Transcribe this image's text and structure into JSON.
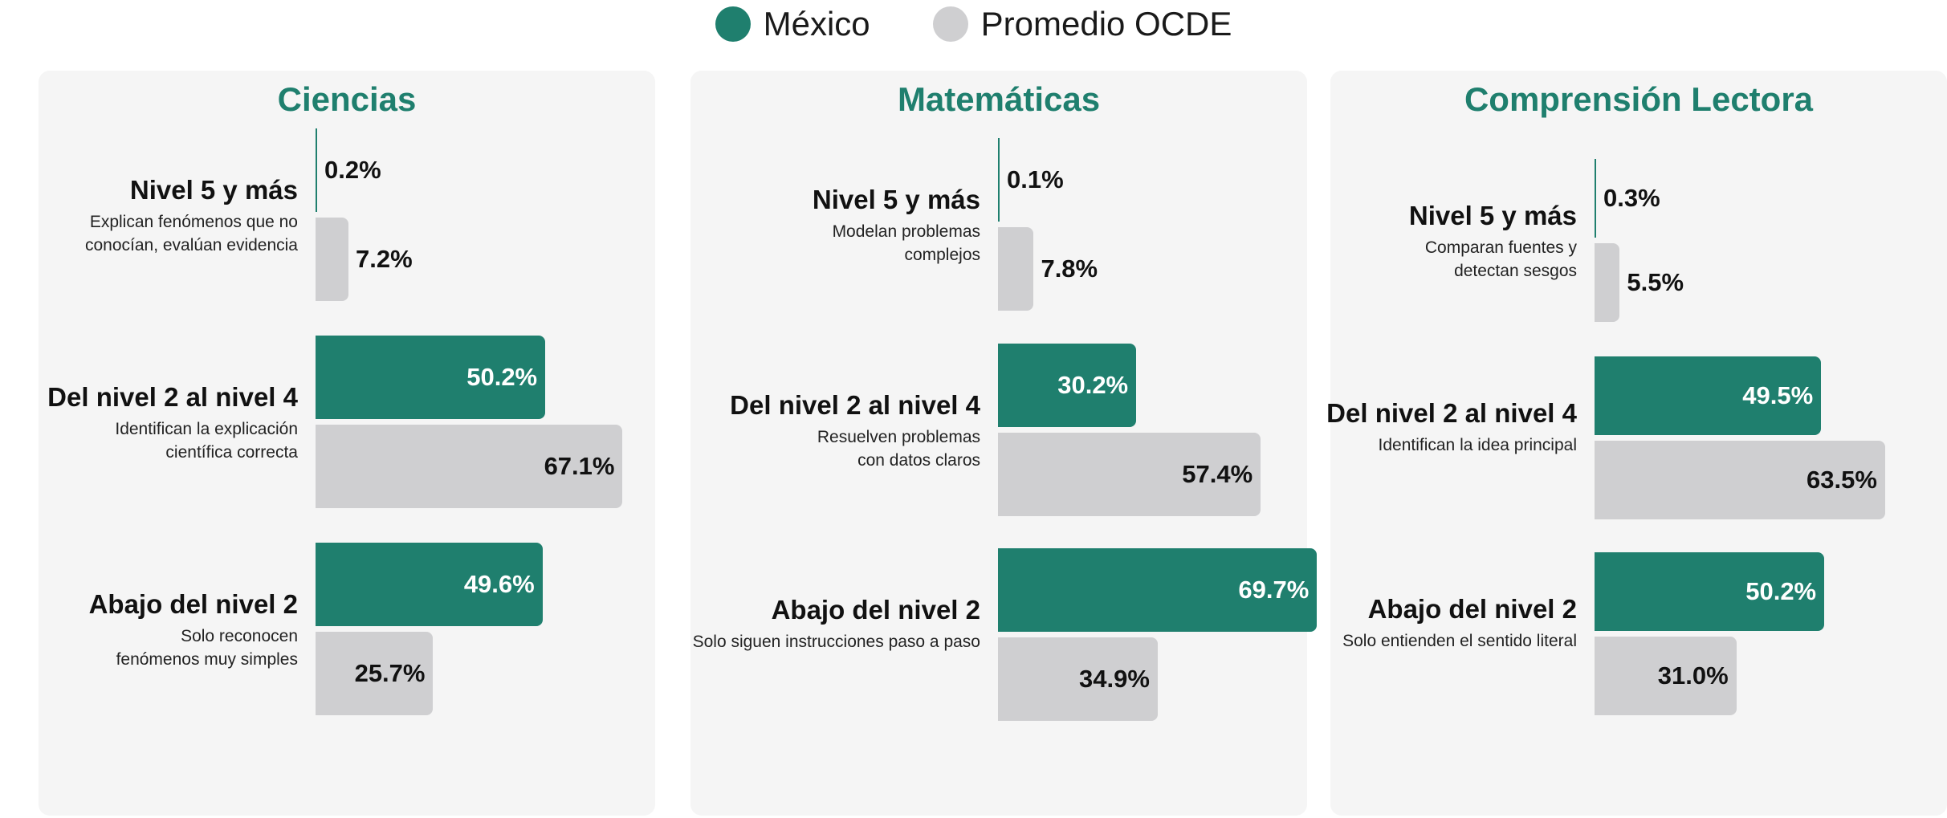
{
  "colors": {
    "mexico": "#1f7f6e",
    "ocde": "#cfcfd1",
    "title": "#1f7f6e",
    "panel_bg": "#f5f5f5"
  },
  "legend": [
    {
      "label": "México",
      "color": "#1f7f6e"
    },
    {
      "label": "Promedio OCDE",
      "color": "#cfcfd1"
    }
  ],
  "chart_data": [
    {
      "type": "bar",
      "title": "Ciencias",
      "categories": [
        {
          "name": "Nivel 5 y más",
          "desc": "Explican fenómenos que no\nconocían, evalúan evidencia",
          "values": [
            0.2,
            7.2
          ]
        },
        {
          "name": "Del nivel 2 al nivel 4",
          "desc": "Identifican la explicación\ncientífica correcta",
          "values": [
            50.2,
            67.1
          ]
        },
        {
          "name": "Abajo del nivel 2",
          "desc": "Solo reconocen\nfenómenos muy simples",
          "values": [
            49.6,
            25.7
          ]
        }
      ],
      "series": [
        {
          "name": "México"
        },
        {
          "name": "Promedio OCDE"
        }
      ],
      "value_suffix": "%"
    },
    {
      "type": "bar",
      "title": "Matemáticas",
      "categories": [
        {
          "name": "Nivel 5 y más",
          "desc": "Modelan problemas\ncomplejos",
          "values": [
            0.1,
            7.8
          ]
        },
        {
          "name": "Del nivel 2 al nivel 4",
          "desc": "Resuelven problemas\ncon datos claros",
          "values": [
            30.2,
            57.4
          ]
        },
        {
          "name": "Abajo del nivel 2",
          "desc": "Solo siguen instrucciones paso a paso",
          "values": [
            69.7,
            34.9
          ]
        }
      ],
      "series": [
        {
          "name": "México"
        },
        {
          "name": "Promedio OCDE"
        }
      ],
      "value_suffix": "%"
    },
    {
      "type": "bar",
      "title": "Comprensión Lectora",
      "categories": [
        {
          "name": "Nivel 5 y más",
          "desc": "Comparan fuentes y\ndetectan sesgos",
          "values": [
            0.3,
            5.5
          ]
        },
        {
          "name": "Del nivel 2 al nivel 4",
          "desc": "Identifican la idea principal",
          "values": [
            49.5,
            63.5
          ]
        },
        {
          "name": "Abajo del nivel 2",
          "desc": "Solo entienden el sentido literal",
          "values": [
            50.2,
            31.0
          ]
        }
      ],
      "series": [
        {
          "name": "México"
        },
        {
          "name": "Promedio OCDE"
        }
      ],
      "value_suffix": "%"
    }
  ]
}
